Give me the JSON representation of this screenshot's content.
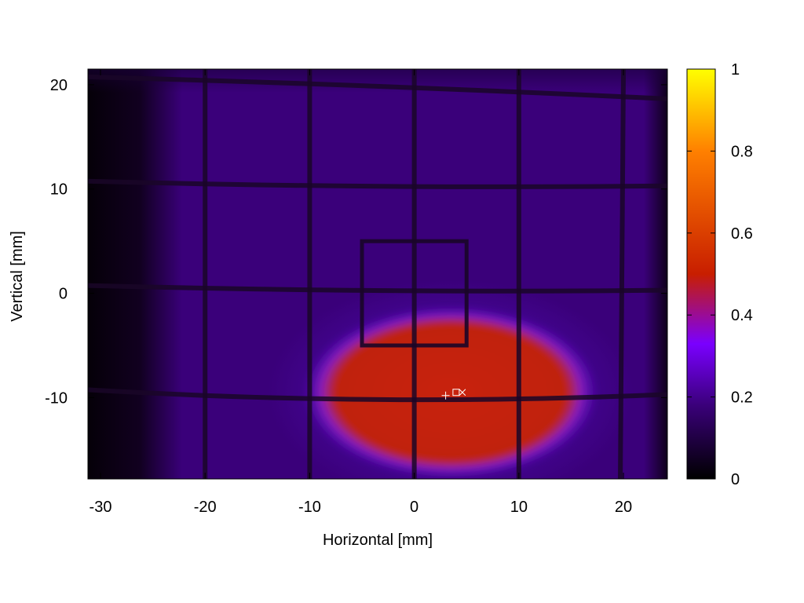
{
  "chart_data": {
    "type": "heatmap",
    "title": "",
    "xlabel": "Horizontal [mm]",
    "ylabel": "Vertical [mm]",
    "xlim": [
      -31.2,
      24.2
    ],
    "ylim": [
      -17.8,
      21.5
    ],
    "x_ticks": [
      -30,
      -20,
      -10,
      0,
      10,
      20
    ],
    "x_tick_labels": [
      "-30",
      "-20",
      "-10",
      "0",
      "10",
      "20"
    ],
    "y_ticks": [
      -10,
      0,
      10,
      20
    ],
    "y_tick_labels": [
      "-10",
      "0",
      "10",
      "20"
    ],
    "colorbar": {
      "range": [
        0,
        1
      ],
      "ticks": [
        0,
        0.2,
        0.4,
        0.6,
        0.8,
        1
      ],
      "tick_labels": [
        "0",
        "0.2",
        "0.4",
        "0.6",
        "0.8",
        "1"
      ],
      "palette": [
        "#000000",
        "#3a007a",
        "#7a00ff",
        "#c81e00",
        "#ff8000",
        "#ffff00"
      ]
    },
    "background_level": 0.18,
    "beam_spot": {
      "center_x": 3.5,
      "center_y": -9.5,
      "half_width_x": 13,
      "half_height_y": 7.5,
      "level": 0.47
    },
    "grid_lines_x": [
      -20,
      -10,
      0,
      10,
      20
    ],
    "grid_lines_y": [
      -10,
      0,
      10,
      20
    ],
    "square_marker": {
      "x1": -5,
      "x2": 5,
      "y1": -5,
      "y2": 5
    },
    "center_markers": [
      {
        "symbol": "+",
        "x": 3.0,
        "y": -9.8
      },
      {
        "symbol": "square",
        "x": 4.0,
        "y": -9.5
      },
      {
        "symbol": "x",
        "x": 4.6,
        "y": -9.5
      }
    ]
  }
}
